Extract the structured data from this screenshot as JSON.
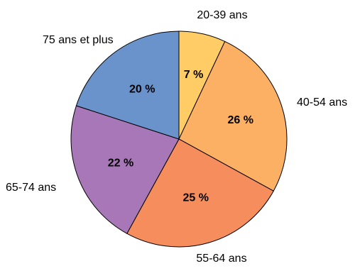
{
  "chart_data": {
    "type": "pie",
    "slices": [
      {
        "label": "20-39 ans",
        "value": 7,
        "value_label": "7 %",
        "color": "#FFCC66"
      },
      {
        "label": "40-54 ans",
        "value": 26,
        "value_label": "26 %",
        "color": "#FBB064"
      },
      {
        "label": "55-64 ans",
        "value": 25,
        "value_label": "25 %",
        "color": "#F58E5C"
      },
      {
        "label": "65-74 ans",
        "value": 22,
        "value_label": "22 %",
        "color": "#A777B7"
      },
      {
        "label": "75 ans et plus",
        "value": 20,
        "value_label": "20 %",
        "color": "#6A93CC"
      }
    ],
    "start_angle_deg": 0,
    "direction": "clockwise"
  }
}
